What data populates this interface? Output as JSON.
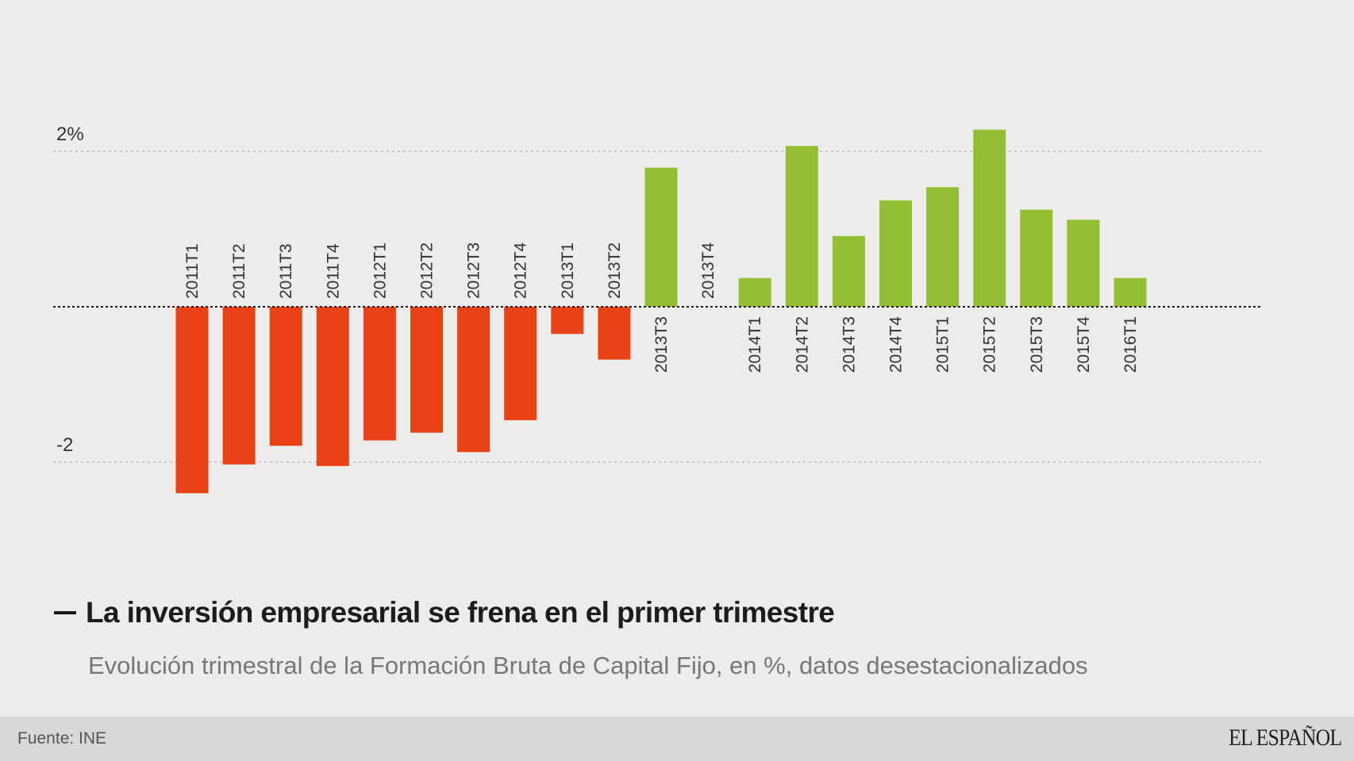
{
  "chart_data": {
    "type": "bar",
    "title": "La inversión empresarial se frena en el primer trimestre",
    "subtitle": "Evolución trimestral de la Formación Bruta de Capital Fijo, en %, datos desestacionalizados",
    "categories": [
      "2011T1",
      "2011T2",
      "2011T3",
      "2011T4",
      "2012T1",
      "2012T2",
      "2012T3",
      "2012T4",
      "2013T1",
      "2013T2",
      "2013T3",
      "2013T4",
      "2014T1",
      "2014T2",
      "2014T3",
      "2014T4",
      "2015T1",
      "2015T2",
      "2015T3",
      "2015T4",
      "2016T1"
    ],
    "values": [
      -2.4,
      -2.03,
      -1.79,
      -2.05,
      -1.72,
      -1.62,
      -1.87,
      -1.46,
      -0.35,
      -0.68,
      1.79,
      0.0,
      0.37,
      2.07,
      0.91,
      1.37,
      1.54,
      2.28,
      1.25,
      1.12,
      0.37
    ],
    "ylim": [
      -2.4,
      2.3
    ],
    "y_ticks": [
      {
        "value": 2,
        "label": "2%"
      },
      {
        "value": -2,
        "label": "-2"
      }
    ],
    "xlabel": "",
    "ylabel": "",
    "grid": true,
    "positive_color": "#95bf32",
    "negative_color": "#ea4217"
  },
  "footer": {
    "source": "Fuente: INE",
    "brand": "EL ESPAÑOL"
  }
}
